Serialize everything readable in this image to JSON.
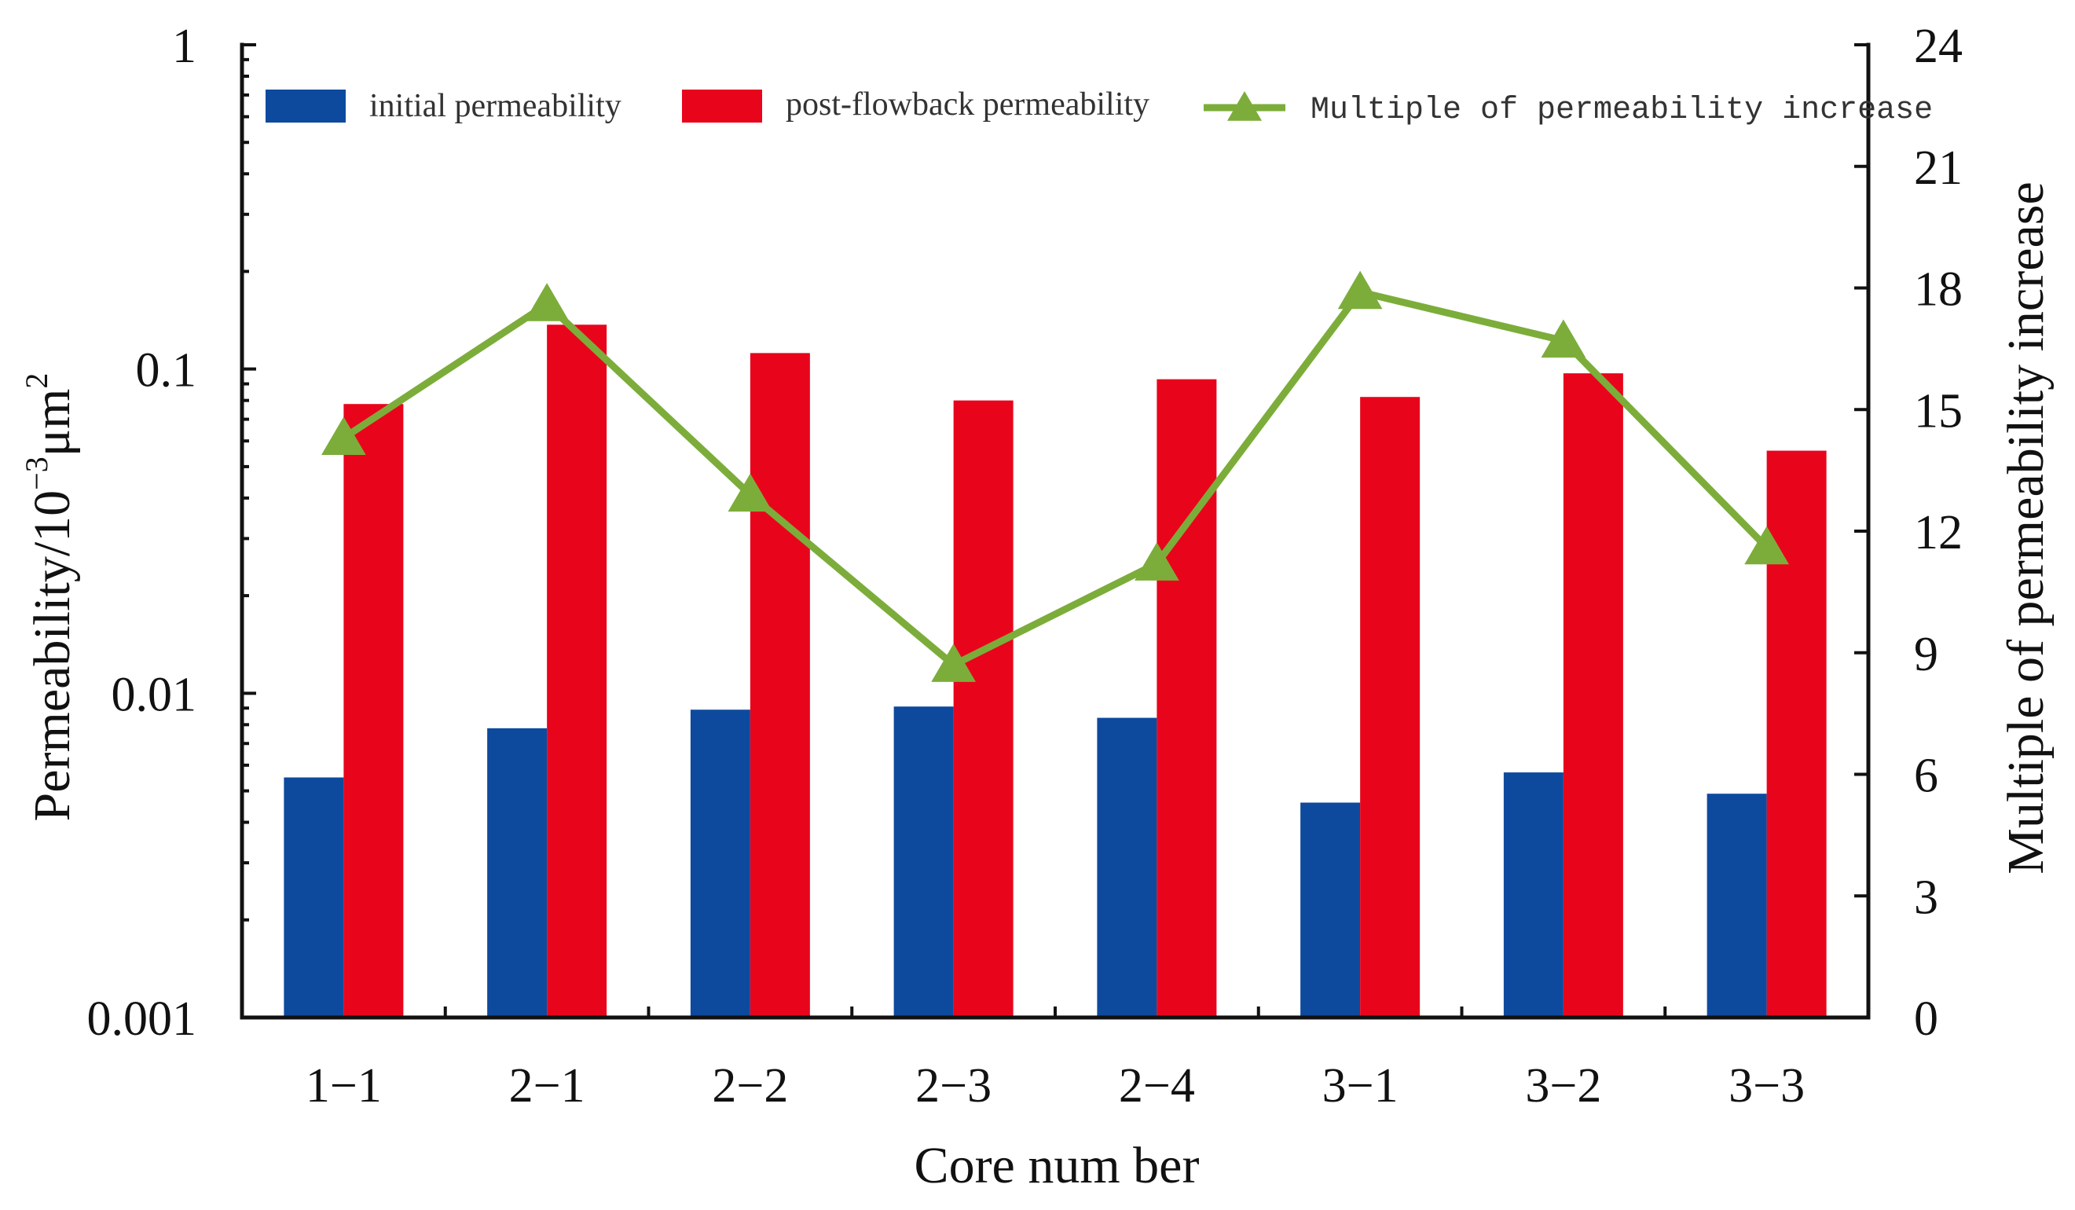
{
  "chart_data": {
    "type": "bar",
    "title": "",
    "xlabel": "Core num ber",
    "ylabel_left": {
      "main": "Permeability/10",
      "exp": "−3",
      "unit": "μm",
      "unit_exp": "2"
    },
    "ylabel_right": "Multiple of permeability increase",
    "categories": [
      "1−1",
      "2−1",
      "2−2",
      "2−3",
      "2−4",
      "3−1",
      "3−2",
      "3−3"
    ],
    "y_left": {
      "scale": "log",
      "lim": [
        0.001,
        1
      ],
      "ticks": [
        0.001,
        0.01,
        0.1,
        1
      ],
      "tick_labels": [
        "0.001",
        "0.01",
        "0.1",
        "1"
      ]
    },
    "y_right": {
      "scale": "linear",
      "lim": [
        0,
        24
      ],
      "ticks": [
        0,
        3,
        6,
        9,
        12,
        15,
        18,
        21,
        24
      ],
      "tick_labels": [
        "0",
        "3",
        "6",
        "9",
        "12",
        "15",
        "18",
        "21",
        "24"
      ]
    },
    "series": [
      {
        "name": "initial permeability",
        "kind": "bar",
        "axis": "left",
        "color": "#0d4a9e",
        "values": [
          0.0055,
          0.0078,
          0.0089,
          0.0091,
          0.0084,
          0.0046,
          0.0057,
          0.0049
        ]
      },
      {
        "name": "post-flowback permeability",
        "kind": "bar",
        "axis": "left",
        "color": "#e8051c",
        "values": [
          0.078,
          0.137,
          0.112,
          0.08,
          0.093,
          0.082,
          0.097,
          0.056
        ]
      },
      {
        "name": "Multiple of permeability increase",
        "kind": "line",
        "axis": "right",
        "color": "#7cad3a",
        "values": [
          14.3,
          17.6,
          12.9,
          8.7,
          11.2,
          17.9,
          16.7,
          11.6
        ]
      }
    ],
    "legend_placement": "top"
  }
}
